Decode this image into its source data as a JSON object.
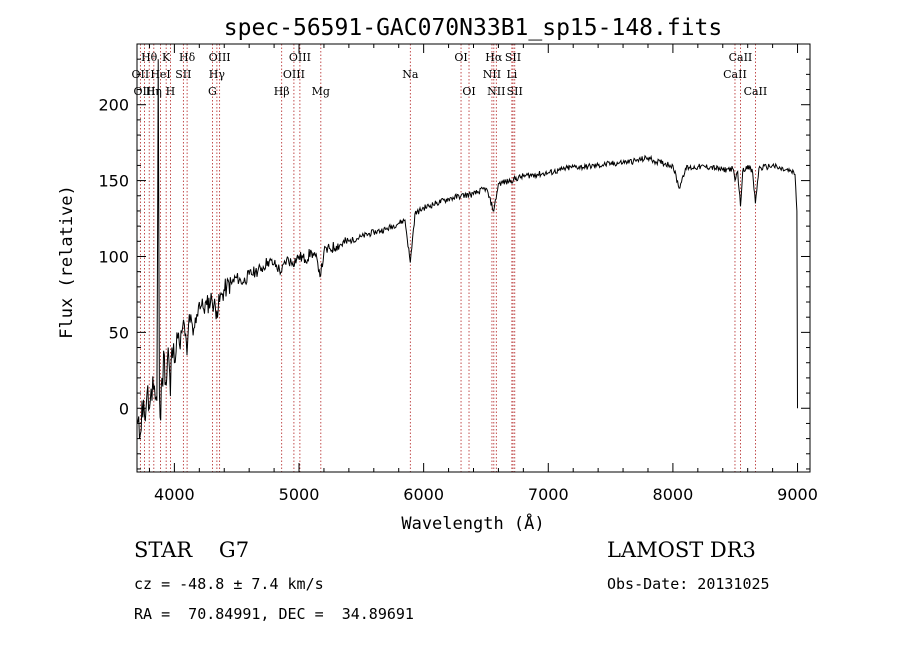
{
  "chart_data": {
    "type": "line",
    "title": "spec-56591-GAC070N33B1_sp15-148.fits",
    "xlabel": "Wavelength (Å)",
    "ylabel": "Flux (relative)",
    "xlim": [
      3700,
      9100
    ],
    "ylim": [
      -42,
      240
    ],
    "x_ticks": [
      4000,
      5000,
      6000,
      7000,
      8000,
      9000
    ],
    "y_ticks": [
      0,
      50,
      100,
      150,
      200
    ],
    "x": [
      3700,
      3720,
      3740,
      3760,
      3780,
      3800,
      3820,
      3840,
      3860,
      3870,
      3880,
      3890,
      3900,
      3920,
      3935,
      3950,
      3968,
      3980,
      4000,
      4020,
      4040,
      4060,
      4080,
      4101,
      4120,
      4150,
      4180,
      4200,
      4230,
      4260,
      4300,
      4340,
      4380,
      4420,
      4460,
      4500,
      4550,
      4600,
      4650,
      4700,
      4750,
      4800,
      4861,
      4900,
      4950,
      5000,
      5050,
      5100,
      5150,
      5175,
      5200,
      5250,
      5300,
      5400,
      5500,
      5600,
      5700,
      5800,
      5850,
      5893,
      5930,
      6000,
      6100,
      6200,
      6300,
      6400,
      6500,
      6563,
      6600,
      6700,
      6800,
      6900,
      7000,
      7100,
      7200,
      7300,
      7400,
      7500,
      7600,
      7700,
      7800,
      7850,
      7900,
      8000,
      8050,
      8100,
      8200,
      8300,
      8400,
      8480,
      8498,
      8520,
      8542,
      8560,
      8600,
      8640,
      8662,
      8690,
      8750,
      8800,
      8850,
      8900,
      8950,
      8980,
      8995,
      9000
    ],
    "y": [
      -10,
      -20,
      5,
      -5,
      10,
      0,
      5,
      15,
      5,
      230,
      10,
      -8,
      20,
      35,
      15,
      40,
      8,
      40,
      30,
      50,
      42,
      50,
      55,
      35,
      62,
      48,
      62,
      70,
      66,
      68,
      72,
      64,
      75,
      80,
      82,
      86,
      83,
      88,
      90,
      92,
      97,
      95,
      90,
      98,
      96,
      100,
      98,
      103,
      96,
      88,
      103,
      105,
      107,
      110,
      113,
      116,
      118,
      122,
      124,
      96,
      128,
      132,
      135,
      138,
      140,
      141,
      145,
      130,
      148,
      150,
      153,
      154,
      155,
      157,
      159,
      159,
      160,
      161,
      162,
      163,
      165,
      163,
      162,
      160,
      145,
      158,
      159,
      159,
      157,
      158,
      150,
      156,
      133,
      156,
      160,
      155,
      135,
      158,
      159,
      160,
      158,
      157,
      156,
      154,
      130,
      0
    ],
    "lines": [
      {
        "name": "Hθ",
        "wavelength": 3798,
        "row": 1
      },
      {
        "name": "OII",
        "wavelength": 3727,
        "row": 2
      },
      {
        "name": "OIII",
        "wavelength": 3760,
        "row": 3
      },
      {
        "name": "Hη",
        "wavelength": 3835,
        "row": 3
      },
      {
        "name": "HeI",
        "wavelength": 3889,
        "row": 2
      },
      {
        "name": "K",
        "wavelength": 3934,
        "row": 1
      },
      {
        "name": "H",
        "wavelength": 3968,
        "row": 3
      },
      {
        "name": "SII",
        "wavelength": 4072,
        "row": 2
      },
      {
        "name": "Hδ",
        "wavelength": 4102,
        "row": 1
      },
      {
        "name": "G",
        "wavelength": 4305,
        "row": 3
      },
      {
        "name": "OIII",
        "wavelength": 4363,
        "row": 1
      },
      {
        "name": "Hγ",
        "wavelength": 4341,
        "row": 2
      },
      {
        "name": "Hβ",
        "wavelength": 4861,
        "row": 3
      },
      {
        "name": "OIII",
        "wavelength": 4959,
        "row": 2
      },
      {
        "name": "OIII",
        "wavelength": 5007,
        "row": 1
      },
      {
        "name": "Mg",
        "wavelength": 5175,
        "row": 3
      },
      {
        "name": "Na",
        "wavelength": 5893,
        "row": 2
      },
      {
        "name": "OI",
        "wavelength": 6300,
        "row": 1
      },
      {
        "name": "OI",
        "wavelength": 6364,
        "row": 3
      },
      {
        "name": "Hα",
        "wavelength": 6563,
        "row": 1
      },
      {
        "name": "NII",
        "wavelength": 6548,
        "row": 2
      },
      {
        "name": "NII",
        "wavelength": 6583,
        "row": 3
      },
      {
        "name": "SII",
        "wavelength": 6717,
        "row": 1
      },
      {
        "name": "Li",
        "wavelength": 6708,
        "row": 2
      },
      {
        "name": "SII",
        "wavelength": 6731,
        "row": 3
      },
      {
        "name": "CaII",
        "wavelength": 8542,
        "row": 1
      },
      {
        "name": "CaII",
        "wavelength": 8498,
        "row": 2
      },
      {
        "name": "CaII",
        "wavelength": 8662,
        "row": 3
      }
    ]
  },
  "info": {
    "classification": "STAR    G7",
    "survey": "LAMOST DR3",
    "cz": "cz = -48.8 ± 7.4 km/s",
    "obs_date": "Obs-Date: 20131025",
    "radec": "RA =  70.84991, DEC =  34.89691"
  }
}
